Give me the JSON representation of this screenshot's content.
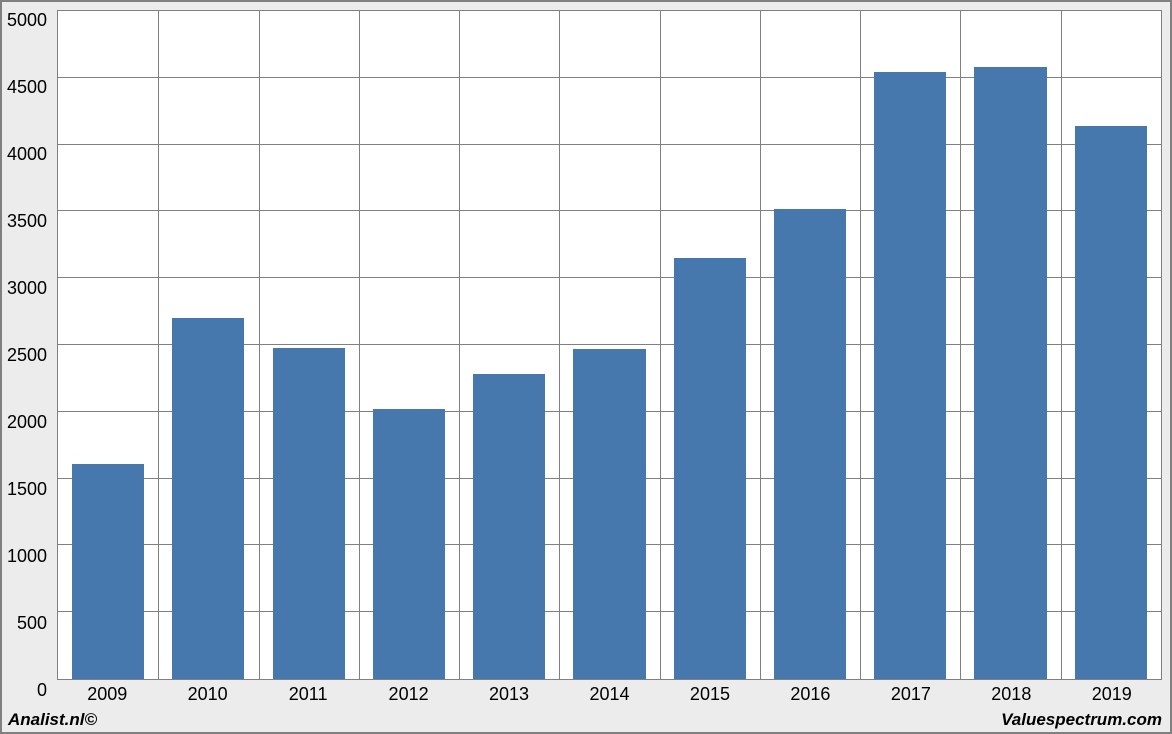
{
  "chart": {
    "type": "bar",
    "categories": [
      "2009",
      "2010",
      "2011",
      "2012",
      "2013",
      "2014",
      "2015",
      "2016",
      "2017",
      "2018",
      "2019"
    ],
    "values": [
      1610,
      2700,
      2480,
      2020,
      2280,
      2470,
      3150,
      3520,
      4540,
      4580,
      4140
    ],
    "bar_color": "#4678ae",
    "background_color": "#ffffff",
    "outer_background": "#ececec",
    "border_color": "#808080",
    "grid_color": "#808080",
    "ylim": [
      0,
      5000
    ],
    "ytick_step": 500,
    "yticks": [
      0,
      500,
      1000,
      1500,
      2000,
      2500,
      3000,
      3500,
      4000,
      4500,
      5000
    ],
    "tick_fontsize": 18,
    "bar_width_ratio": 0.72,
    "footer_left": "Analist.nl©",
    "footer_right": "Valuespectrum.com"
  }
}
